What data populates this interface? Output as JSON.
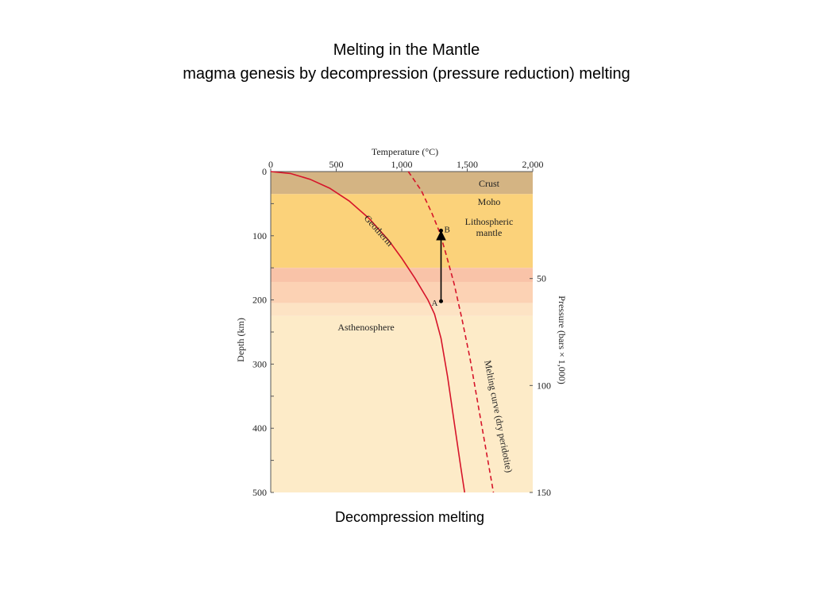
{
  "slide": {
    "title_line1": "Melting in the Mantle",
    "title_line2": "magma genesis by decompression (pressure reduction) melting",
    "caption": "Decompression melting"
  },
  "figure": {
    "top_axis": {
      "label": "Temperature (°C)",
      "ticks": [
        {
          "value": 0,
          "label": "0"
        },
        {
          "value": 500,
          "label": "500"
        },
        {
          "value": 1000,
          "label": "1,000"
        },
        {
          "value": 1500,
          "label": "1,500"
        },
        {
          "value": 2000,
          "label": "2,000"
        }
      ],
      "range": [
        0,
        2000
      ]
    },
    "left_axis": {
      "label": "Depth (km)",
      "ticks": [
        {
          "value": 0,
          "label": "0"
        },
        {
          "value": 100,
          "label": "100"
        },
        {
          "value": 200,
          "label": "200"
        },
        {
          "value": 300,
          "label": "300"
        },
        {
          "value": 400,
          "label": "400"
        },
        {
          "value": 500,
          "label": "500"
        }
      ],
      "range": [
        0,
        500
      ]
    },
    "right_axis": {
      "label": "Pressure (bars × 1,000)",
      "ticks": [
        {
          "value": 50,
          "label": "50"
        },
        {
          "value": 100,
          "label": "100"
        },
        {
          "value": 150,
          "label": "150"
        }
      ]
    },
    "layers": [
      {
        "name": "Crust",
        "label": "Crust",
        "top_km": 0,
        "bottom_km": 35,
        "color": "#d4b483"
      },
      {
        "name": "Lithospheric mantle",
        "label_line1": "Lithospheric",
        "label_line2": "mantle",
        "top_km": 35,
        "bottom_km": 150,
        "color": "#fbd27a"
      },
      {
        "name": "Transition 1",
        "top_km": 150,
        "bottom_km": 172,
        "color": "#f9c3a8"
      },
      {
        "name": "Transition 2",
        "top_km": 172,
        "bottom_km": 205,
        "color": "#fcd2b4"
      },
      {
        "name": "Transition 3",
        "top_km": 205,
        "bottom_km": 225,
        "color": "#fde3c4"
      },
      {
        "name": "Asthenosphere",
        "label": "Asthenosphere",
        "top_km": 225,
        "bottom_km": 500,
        "color": "#fdebc8"
      }
    ],
    "moho_label": "Moho",
    "geotherm": {
      "label": "Geotherm",
      "color": "#d6142a",
      "points": [
        [
          0,
          0
        ],
        [
          150,
          3
        ],
        [
          300,
          12
        ],
        [
          450,
          26
        ],
        [
          600,
          46
        ],
        [
          750,
          73
        ],
        [
          900,
          107
        ],
        [
          1000,
          135
        ],
        [
          1100,
          166
        ],
        [
          1200,
          200
        ],
        [
          1250,
          222
        ],
        [
          1300,
          260
        ],
        [
          1350,
          320
        ],
        [
          1400,
          390
        ],
        [
          1450,
          460
        ],
        [
          1480,
          500
        ]
      ]
    },
    "melting_curve": {
      "label": "Melting curve (dry peridotite)",
      "color": "#d6142a",
      "points": [
        [
          1050,
          0
        ],
        [
          1150,
          30
        ],
        [
          1230,
          65
        ],
        [
          1290,
          95
        ],
        [
          1340,
          130
        ],
        [
          1400,
          175
        ],
        [
          1460,
          230
        ],
        [
          1520,
          290
        ],
        [
          1580,
          360
        ],
        [
          1640,
          430
        ],
        [
          1700,
          500
        ]
      ]
    },
    "point_a": {
      "label": "A",
      "temp_c": 1300,
      "depth_km": 202
    },
    "point_b": {
      "label": "B",
      "temp_c": 1300,
      "depth_km": 92
    }
  }
}
